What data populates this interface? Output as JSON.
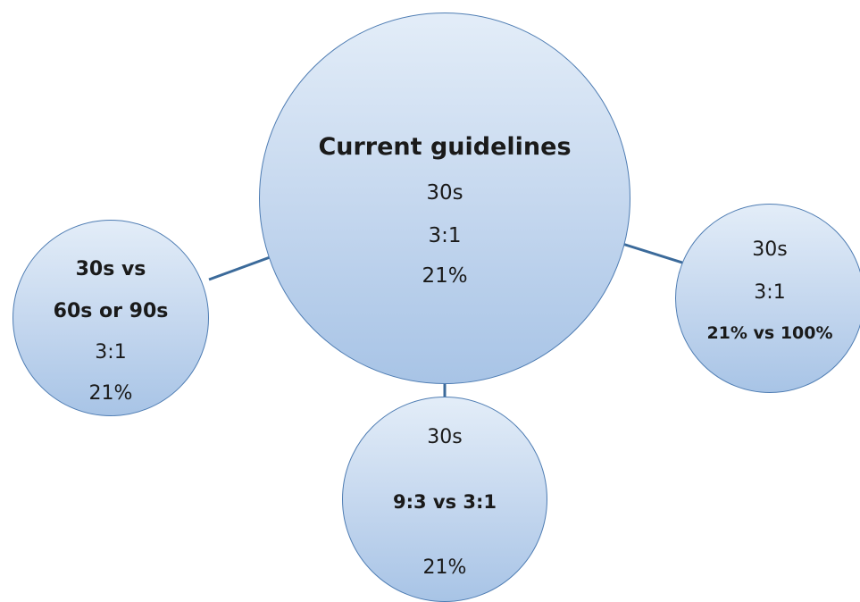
{
  "diagram": {
    "center": {
      "title": "Current guidelines",
      "line1": "30s",
      "line2": "3:1",
      "line3": "21%"
    },
    "left": {
      "line1": "30s vs",
      "line2": "60s or 90s",
      "line3": "3:1",
      "line4": "21%"
    },
    "right": {
      "line1": "30s",
      "line2": "3:1",
      "line3": "21% vs 100%"
    },
    "bottom": {
      "line1": "30s",
      "line2": "9:3 vs 3:1",
      "line3": "21%"
    },
    "colors": {
      "node_fill_top": "#e3edf8",
      "node_fill_bottom": "#a8c4e6",
      "node_border": "#4f7db3",
      "connector": "#3b6a9a"
    }
  }
}
